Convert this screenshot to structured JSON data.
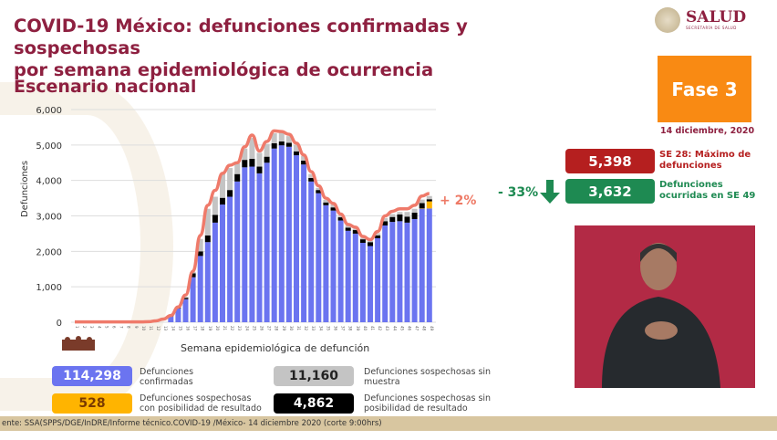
{
  "header": {
    "title_line1": "COVID-19 México: defunciones confirmadas y sospechosas",
    "title_line2": "por semana epidemiológica de ocurrencia",
    "subtitle": "Escenario nacional"
  },
  "logo": {
    "name": "SALUD",
    "sub": "SECRETARÍA DE SALUD"
  },
  "phase": {
    "label": "Fase 3",
    "date": "14 diciembre, 2020",
    "color": "#f98a13"
  },
  "stats": {
    "max": {
      "value": "5,398",
      "label": "SE 28: Máximo de defunciones",
      "color": "#b51f1f"
    },
    "current": {
      "value": "3,632",
      "label": "Defunciones ocurridas en SE 49",
      "color": "#1e8a52"
    },
    "change": "- 33%"
  },
  "legend": [
    {
      "value": "114,298",
      "label": "Defunciones confirmadas",
      "color": "#6b74f0"
    },
    {
      "value": "528",
      "label": "Defunciones sospechosas con posibilidad de resultado",
      "color": "#ffb400"
    },
    {
      "value": "11,160",
      "label": "Defunciones sospechosas sin muestra",
      "color": "#c4c4c4"
    },
    {
      "value": "4,862",
      "label": "Defunciones sospechosas sin posibilidad de resultado",
      "color": "#000000"
    }
  ],
  "footer": "ente: SSA(SPPS/DGE/InDRE/Informe técnico.COVID-19 /México- 14 diciembre 2020 (corte 9:00hrs)",
  "chart_data": {
    "type": "bar",
    "stacked": true,
    "xlabel": "Semana epidemiológica de defunción",
    "ylabel": "Defunciones",
    "ylim": [
      0,
      6000
    ],
    "yticks": [
      "0",
      "1,000",
      "2,000",
      "3,000",
      "4,000",
      "5,000",
      "6,000"
    ],
    "grid": true,
    "annotation": "+ 2%",
    "categories": [
      1,
      2,
      3,
      4,
      5,
      6,
      7,
      8,
      9,
      10,
      11,
      12,
      13,
      14,
      15,
      16,
      17,
      18,
      19,
      20,
      21,
      22,
      23,
      24,
      25,
      26,
      27,
      28,
      29,
      30,
      31,
      32,
      33,
      34,
      35,
      36,
      37,
      38,
      39,
      40,
      41,
      42,
      43,
      44,
      45,
      46,
      47,
      48,
      49
    ],
    "series": [
      {
        "key": "confirmadas",
        "values": [
          0,
          0,
          0,
          0,
          0,
          0,
          0,
          0,
          0,
          0,
          0,
          0,
          0,
          160,
          390,
          650,
          1270,
          1870,
          2260,
          2810,
          3320,
          3540,
          3970,
          4370,
          4390,
          4200,
          4500,
          4900,
          4990,
          4950,
          4710,
          4450,
          3970,
          3640,
          3300,
          3150,
          2870,
          2580,
          2500,
          2240,
          2150,
          2370,
          2730,
          2830,
          2850,
          2810,
          2910,
          3200,
          3210
        ]
      },
      {
        "key": "con_posibilidad",
        "values": [
          0,
          0,
          0,
          0,
          0,
          0,
          0,
          0,
          0,
          0,
          0,
          0,
          0,
          0,
          0,
          0,
          0,
          0,
          0,
          0,
          0,
          0,
          0,
          0,
          0,
          0,
          0,
          0,
          0,
          0,
          0,
          0,
          0,
          0,
          0,
          0,
          0,
          0,
          0,
          0,
          0,
          0,
          0,
          0,
          0,
          0,
          0,
          10,
          200
        ]
      },
      {
        "key": "sin_posibilidad",
        "values": [
          0,
          0,
          0,
          0,
          0,
          0,
          0,
          0,
          0,
          0,
          0,
          0,
          0,
          10,
          20,
          40,
          110,
          130,
          190,
          220,
          190,
          190,
          210,
          210,
          220,
          190,
          170,
          150,
          110,
          110,
          110,
          110,
          100,
          90,
          80,
          90,
          90,
          90,
          100,
          100,
          110,
          80,
          120,
          140,
          190,
          170,
          180,
          150,
          60
        ]
      },
      {
        "key": "sin_muestra",
        "values": [
          0,
          0,
          0,
          0,
          0,
          0,
          0,
          0,
          0,
          0,
          0,
          0,
          0,
          0,
          10,
          30,
          40,
          350,
          750,
          510,
          670,
          620,
          300,
          320,
          590,
          390,
          360,
          280,
          250,
          190,
          180,
          130,
          110,
          60,
          70,
          80,
          50,
          60,
          40,
          40,
          40,
          60,
          90,
          80,
          70,
          130,
          110,
          100,
          90
        ]
      }
    ],
    "line": {
      "values": [
        10,
        10,
        10,
        10,
        10,
        10,
        10,
        10,
        10,
        10,
        15,
        40,
        90,
        190,
        430,
        770,
        1440,
        2450,
        3300,
        3720,
        4200,
        4430,
        4500,
        4950,
        5280,
        4830,
        5100,
        5398,
        5380,
        5300,
        5050,
        4720,
        4250,
        3850,
        3500,
        3350,
        3050,
        2760,
        2680,
        2420,
        2330,
        2560,
        3000,
        3130,
        3200,
        3200,
        3300,
        3560,
        3632
      ],
      "color": "#ef7a6a"
    }
  }
}
